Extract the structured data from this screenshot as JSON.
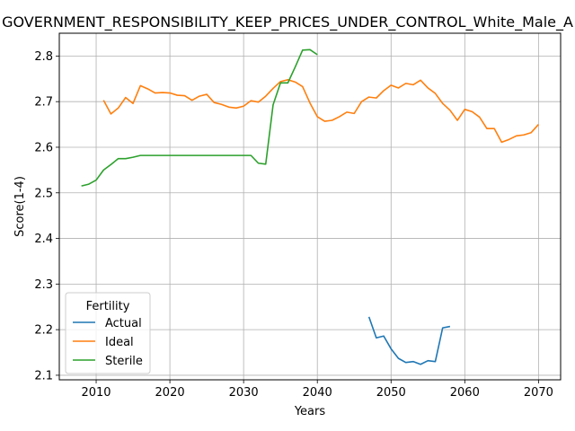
{
  "chart_data": {
    "type": "line",
    "title": "GOVERNMENT_RESPONSIBILITY_KEEP_PRICES_UNDER_CONTROL_White_Male_A",
    "xlabel": "Years",
    "ylabel": "Score(1-4)",
    "xlim": [
      2005,
      2073
    ],
    "ylim": [
      2.09,
      2.85
    ],
    "xticks": [
      2010,
      2020,
      2030,
      2040,
      2050,
      2060,
      2070
    ],
    "yticks": [
      2.1,
      2.2,
      2.3,
      2.4,
      2.5,
      2.6,
      2.7,
      2.8
    ],
    "xtick_labels": [
      "2010",
      "2020",
      "2030",
      "2040",
      "2050",
      "2060",
      "2070"
    ],
    "ytick_labels": [
      "2.1",
      "2.2",
      "2.3",
      "2.4",
      "2.5",
      "2.6",
      "2.7",
      "2.8"
    ],
    "grid": true,
    "legend": {
      "title": "Fertility",
      "position": "lower-left"
    },
    "series": [
      {
        "name": "Actual",
        "color": "#1f77b4",
        "x": [
          2047,
          2048,
          2049,
          2050,
          2051,
          2052,
          2053,
          2054,
          2055,
          2056,
          2057,
          2058
        ],
        "values": [
          2.228,
          2.182,
          2.186,
          2.158,
          2.137,
          2.128,
          2.13,
          2.124,
          2.132,
          2.13,
          2.204,
          2.207
        ]
      },
      {
        "name": "Ideal",
        "color": "#ff7f0e",
        "x": [
          2011,
          2012,
          2013,
          2014,
          2015,
          2016,
          2017,
          2018,
          2019,
          2020,
          2021,
          2022,
          2023,
          2024,
          2025,
          2026,
          2027,
          2028,
          2029,
          2030,
          2031,
          2032,
          2033,
          2034,
          2035,
          2036,
          2037,
          2038,
          2039,
          2040,
          2041,
          2042,
          2043,
          2044,
          2045,
          2046,
          2047,
          2048,
          2049,
          2050,
          2051,
          2052,
          2053,
          2054,
          2055,
          2056,
          2057,
          2058,
          2059,
          2060,
          2061,
          2062,
          2063,
          2064,
          2065,
          2066,
          2067,
          2068,
          2069,
          2070
        ],
        "values": [
          2.703,
          2.673,
          2.686,
          2.709,
          2.696,
          2.735,
          2.728,
          2.719,
          2.72,
          2.719,
          2.714,
          2.713,
          2.703,
          2.712,
          2.716,
          2.698,
          2.694,
          2.688,
          2.686,
          2.69,
          2.702,
          2.699,
          2.712,
          2.729,
          2.744,
          2.748,
          2.743,
          2.733,
          2.697,
          2.667,
          2.657,
          2.659,
          2.667,
          2.677,
          2.674,
          2.7,
          2.71,
          2.708,
          2.724,
          2.736,
          2.73,
          2.74,
          2.737,
          2.747,
          2.73,
          2.718,
          2.696,
          2.681,
          2.659,
          2.683,
          2.678,
          2.666,
          2.641,
          2.641,
          2.611,
          2.617,
          2.625,
          2.627,
          2.632,
          2.65
        ]
      },
      {
        "name": "Sterile",
        "color": "#2ca02c",
        "x": [
          2008,
          2009,
          2010,
          2011,
          2012,
          2013,
          2014,
          2015,
          2016,
          2017,
          2018,
          2019,
          2020,
          2021,
          2022,
          2023,
          2024,
          2025,
          2026,
          2027,
          2028,
          2029,
          2030,
          2031,
          2032,
          2033,
          2034,
          2035,
          2036,
          2037,
          2038,
          2039,
          2040
        ],
        "values": [
          2.515,
          2.519,
          2.528,
          2.55,
          2.562,
          2.575,
          2.575,
          2.578,
          2.582,
          2.582,
          2.582,
          2.582,
          2.582,
          2.582,
          2.582,
          2.582,
          2.582,
          2.582,
          2.582,
          2.582,
          2.582,
          2.582,
          2.582,
          2.582,
          2.565,
          2.563,
          2.693,
          2.741,
          2.741,
          2.776,
          2.813,
          2.814,
          2.803
        ]
      }
    ]
  }
}
